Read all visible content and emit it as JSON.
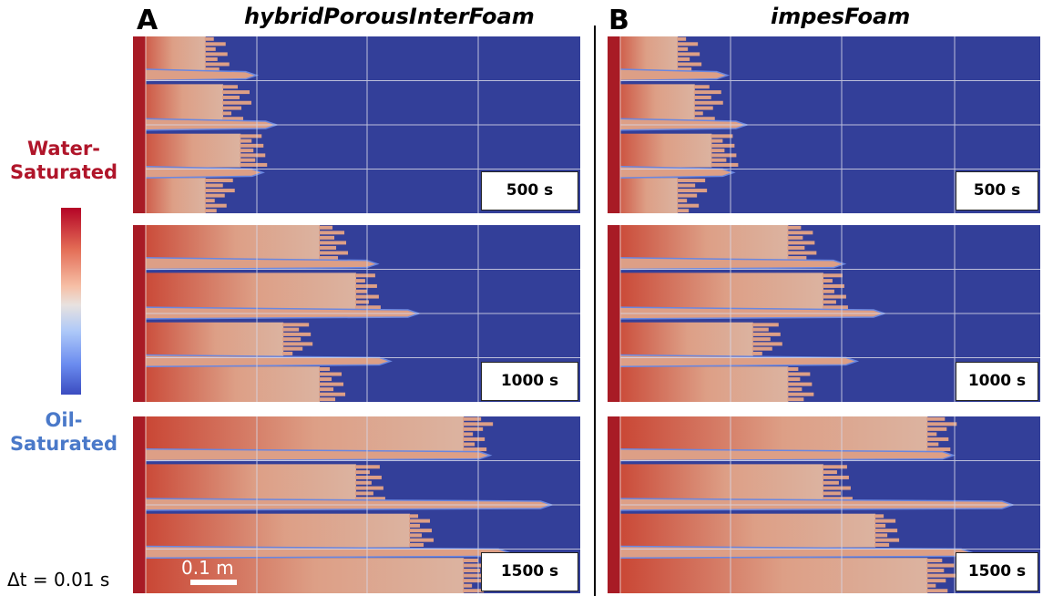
{
  "panels": [
    {
      "letter": "A",
      "title": "hybridPorousInterFoam"
    },
    {
      "letter": "B",
      "title": "impesFoam"
    }
  ],
  "legend": {
    "top_label_line1": "Water-",
    "top_label_line2": "Saturated",
    "bottom_label_line1": "Oil-",
    "bottom_label_line2": "Saturated",
    "colors": {
      "water": "#b40426",
      "neutral": "#e8e2df",
      "oil": "#3b4cc0"
    }
  },
  "timestep_label": "Δt = 0.01 s",
  "scale_label": "0.1 m",
  "time_labels": [
    "500 s",
    "1000 s",
    "1500 s"
  ],
  "colors": {
    "domain_background": "#333f99",
    "inlet": "#a81b25",
    "finger": "#dd9f86",
    "finger_edge": "#6a87e0",
    "grid": "#d6d6e6"
  }
}
